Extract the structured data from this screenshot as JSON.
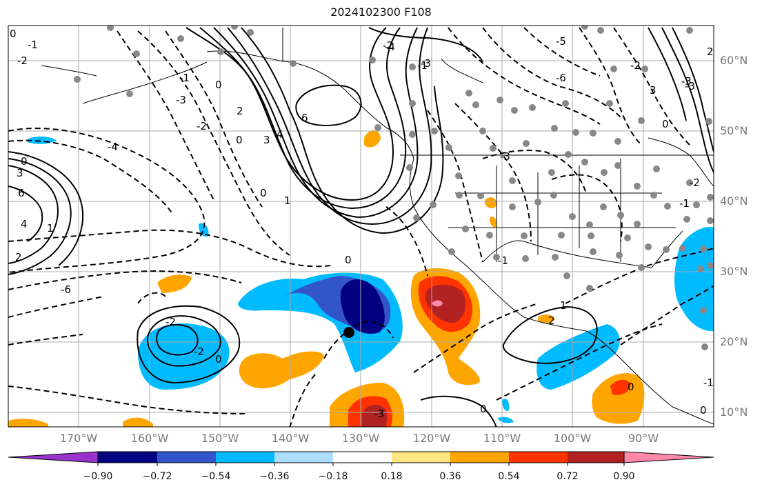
{
  "title": "2024102300 F108",
  "lat_labels": [
    "60°N",
    "50°N",
    "40°N",
    "30°N",
    "20°N",
    "10°N"
  ],
  "lon_labels": [
    "170°W",
    "160°W",
    "150°W",
    "140°W",
    "130°W",
    "120°W",
    "110°W",
    "100°W",
    "90°W"
  ],
  "colorbar": {
    "ticks": [
      "−0.90",
      "−0.72",
      "−0.54",
      "−0.36",
      "−0.18",
      "0.18",
      "0.36",
      "0.54",
      "0.72",
      "0.90"
    ],
    "colors": [
      "#9933cc",
      "#000080",
      "#3355cc",
      "#00bbff",
      "#aaddff",
      "#ffffff",
      "#ffe680",
      "#ffa500",
      "#ff3300",
      "#b22222",
      "#ff88aa"
    ]
  },
  "contour_labels": [
    "0",
    "-1",
    "-2",
    "-3",
    "-4",
    "0",
    "1",
    "2",
    "3",
    "4",
    "6",
    "-6",
    "-2",
    "0",
    "1",
    "2",
    "3",
    "4",
    "6",
    "0",
    "-1",
    "-2",
    "-3",
    "-4",
    "-5",
    "-6",
    "-3",
    "-2",
    "0",
    "-1",
    "-2",
    "0",
    "-2",
    "0",
    "1",
    "2",
    "-3",
    "0",
    "-1",
    "-2",
    "-3",
    "0",
    "2",
    "-3",
    "3",
    "0",
    "-1",
    "0",
    "-1",
    "0"
  ]
}
